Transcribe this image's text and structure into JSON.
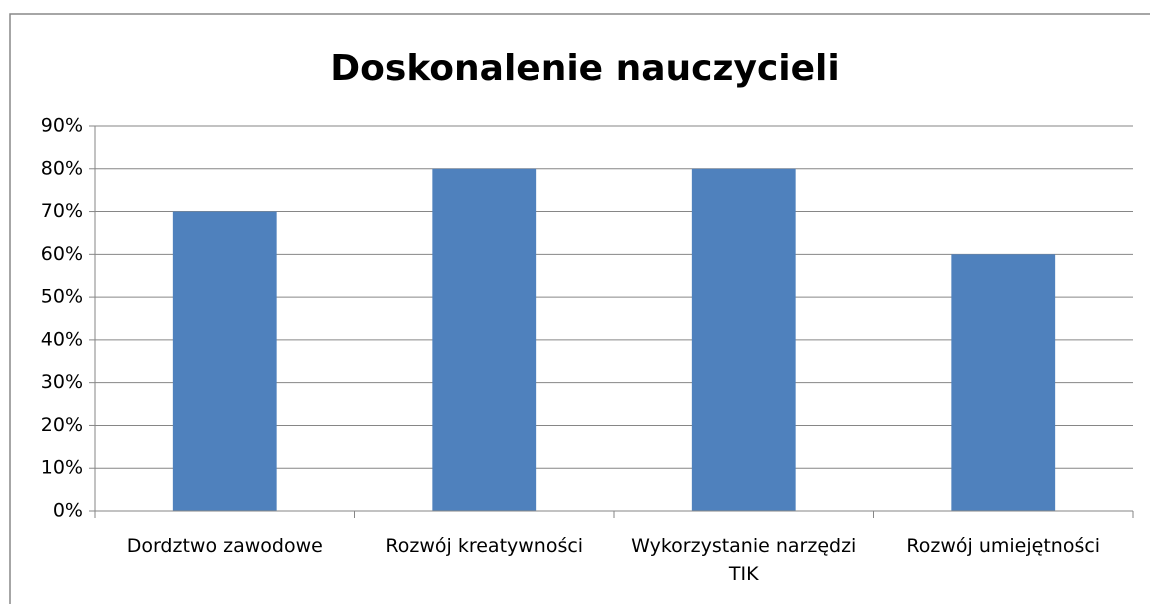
{
  "chart_data": {
    "type": "bar",
    "title": "Doskonalenie nauczycieli",
    "categories": [
      "Dordztwo zawodowe",
      "Rozwój kreatywności",
      "Wykorzystanie narzędzi TIK",
      "Rozwój umiejętności"
    ],
    "values": [
      70,
      80,
      80,
      60
    ],
    "color": "#4f81bd",
    "ylim": [
      0,
      90
    ],
    "yticks": [
      {
        "value": 0,
        "label": "0%"
      },
      {
        "value": 10,
        "label": "10%"
      },
      {
        "value": 20,
        "label": "20%"
      },
      {
        "value": 30,
        "label": "30%"
      },
      {
        "value": 40,
        "label": "40%"
      },
      {
        "value": 50,
        "label": "50%"
      },
      {
        "value": 60,
        "label": "60%"
      },
      {
        "value": 70,
        "label": "70%"
      },
      {
        "value": 80,
        "label": "80%"
      },
      {
        "value": 90,
        "label": "90%"
      }
    ],
    "grid": true
  }
}
